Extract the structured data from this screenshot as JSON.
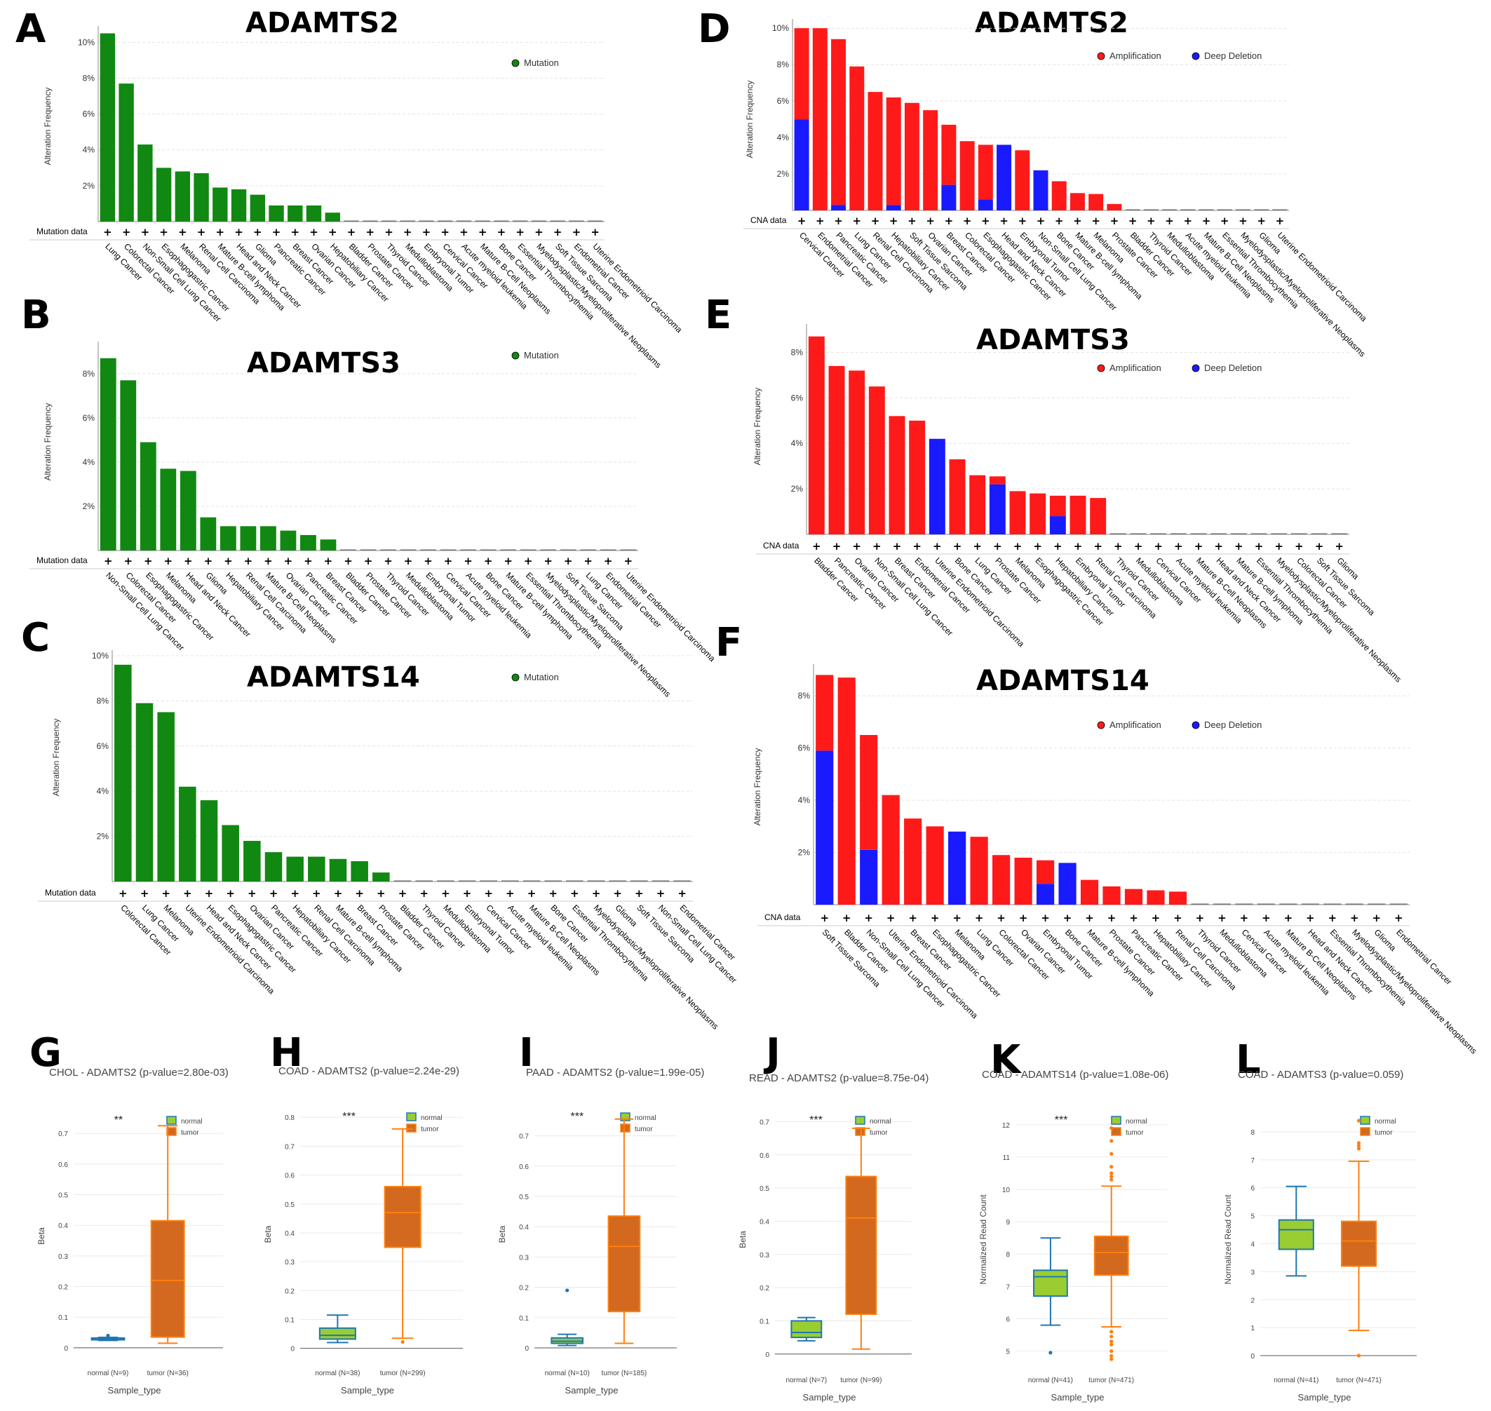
{
  "colors": {
    "mutation": "#118811",
    "amplification": "#ff1a1a",
    "deep_deletion": "#1a1aff",
    "normal_fill": "#9acd32",
    "normal_stroke": "#1f77b4",
    "tumor_fill": "#d2691e",
    "tumor_stroke": "#ff7f0e"
  },
  "chart_data": [
    {
      "panel": "A",
      "title": "ADAMTS2",
      "type": "bar",
      "ylabel": "Alteration Frequency",
      "row_label": "Mutation data",
      "yticks": [
        "2%",
        "4%",
        "6%",
        "8%",
        "10%"
      ],
      "ylim": [
        0,
        10.6
      ],
      "legend": [
        "Mutation"
      ],
      "categories": [
        "Lung Cancer",
        "Colorectal Cancer",
        "Non-Small Cell Lung Cancer",
        "Esophagogastric Cancer",
        "Melanoma",
        "Renal Cell Carcinoma",
        "Mature B-cell lymphoma",
        "Head and Neck Cancer",
        "Glioma",
        "Pancreatic Cancer",
        "Breast Cancer",
        "Ovarian Cancer",
        "Hepatobiliary Cancer",
        "Bladder Cancer",
        "Prostate Cancer",
        "Thyroid Cancer",
        "Medulloblastoma",
        "Embryonal Tumor",
        "Cervical Cancer",
        "Acute myeloid leukemia",
        "Mature B-Cell Neoplasms",
        "Bone Cancer",
        "Essential Thrombocythemia",
        "Myelodysplastic/Myeloproliferative Neoplasms",
        "Soft Tissue Sarcoma",
        "Endometrial Cancer",
        "Uterine Endometrioid Carcinoma"
      ],
      "series": [
        {
          "name": "Mutation",
          "values": [
            10.5,
            7.7,
            4.3,
            3.0,
            2.8,
            2.7,
            1.9,
            1.8,
            1.5,
            0.9,
            0.9,
            0.9,
            0.5,
            0,
            0,
            0,
            0,
            0,
            0,
            0,
            0,
            0,
            0,
            0,
            0,
            0,
            0
          ]
        }
      ]
    },
    {
      "panel": "B",
      "title": "ADAMTS3",
      "type": "bar",
      "ylabel": "Alteration Frequency",
      "row_label": "Mutation data",
      "yticks": [
        "2%",
        "4%",
        "6%",
        "8%"
      ],
      "ylim": [
        0,
        9.2
      ],
      "legend": [
        "Mutation"
      ],
      "categories": [
        "Non-Small Cell Lung Cancer",
        "Colorectal Cancer",
        "Esophagogastric Cancer",
        "Melanoma",
        "Head and Neck Cancer",
        "Glioma",
        "Hepatobiliary Cancer",
        "Renal Cell Carcinoma",
        "Mature B-Cell Neoplasms",
        "Ovarian Cancer",
        "Pancreatic Cancer",
        "Breast Cancer",
        "Bladder Cancer",
        "Prostate Cancer",
        "Thyroid Cancer",
        "Medulloblastoma",
        "Embryonal Tumor",
        "Cervical Cancer",
        "Acute myeloid leukemia",
        "Bone Cancer",
        "Mature B-cell lymphoma",
        "Essential Thrombocythemia",
        "Myelodysplastic/Myeloproliferative Neoplasms",
        "Soft Tissue Sarcoma",
        "Lung Cancer",
        "Endometrial Cancer",
        "Uterine Endometrioid Carcinoma"
      ],
      "series": [
        {
          "name": "Mutation",
          "values": [
            8.7,
            7.7,
            4.9,
            3.7,
            3.6,
            1.5,
            1.1,
            1.1,
            1.1,
            0.9,
            0.7,
            0.5,
            0,
            0,
            0,
            0,
            0,
            0,
            0,
            0,
            0,
            0,
            0,
            0,
            0,
            0,
            0
          ]
        }
      ]
    },
    {
      "panel": "C",
      "title": "ADAMTS14",
      "type": "bar",
      "ylabel": "Alteration Frequency",
      "row_label": "Mutation data",
      "yticks": [
        "2%",
        "4%",
        "6%",
        "8%",
        "10%"
      ],
      "ylim": [
        0,
        10
      ],
      "legend": [
        "Mutation"
      ],
      "categories": [
        "Colorectal Cancer",
        "Lung Cancer",
        "Melanoma",
        "Uterine Endometrioid Carcinoma",
        "Head and Neck Cancer",
        "Esophagogastric Cancer",
        "Ovarian Cancer",
        "Pancreatic Cancer",
        "Hepatobiliary Cancer",
        "Renal Cell Carcinoma",
        "Mature B-cell lymphoma",
        "Breast Cancer",
        "Prostate Cancer",
        "Bladder Cancer",
        "Thyroid Cancer",
        "Medulloblastoma",
        "Embryonal Tumor",
        "Cervical Cancer",
        "Acute myeloid leukemia",
        "Mature B-Cell Neoplasms",
        "Bone Cancer",
        "Essential Thrombocythemia",
        "Myelodysplastic/Myeloproliferative Neoplasms",
        "Glioma",
        "Soft Tissue Sarcoma",
        "Non-Small Cell Lung Cancer",
        "Endometrial Cancer"
      ],
      "series": [
        {
          "name": "Mutation",
          "values": [
            9.6,
            7.9,
            7.5,
            4.2,
            3.6,
            2.5,
            1.8,
            1.3,
            1.1,
            1.1,
            1.0,
            0.9,
            0.4,
            0,
            0,
            0,
            0,
            0,
            0,
            0,
            0,
            0,
            0,
            0,
            0,
            0,
            0
          ]
        }
      ]
    },
    {
      "panel": "D",
      "title": "ADAMTS2",
      "type": "bar",
      "ylabel": "Alteration Frequency",
      "row_label": "CNA data",
      "yticks": [
        "2%",
        "4%",
        "6%",
        "8%",
        "10%"
      ],
      "ylim": [
        0,
        10.2
      ],
      "legend": [
        "Amplification",
        "Deep Deletion"
      ],
      "categories": [
        "Cervical Cancer",
        "Endometrial Cancer",
        "Pancreatic Cancer",
        "Lung Cancer",
        "Renal Cell Carcinoma",
        "Hepatobiliary Cancer",
        "Soft Tissue Sarcoma",
        "Ovarian Cancer",
        "Breast Cancer",
        "Colorectal Cancer",
        "Esophagogastric Cancer",
        "Head and Neck Cancer",
        "Embryonal Tumor",
        "Non-Small Cell Lung Cancer",
        "Bone Cancer",
        "Mature B-cell lymphoma",
        "Melanoma",
        "Prostate Cancer",
        "Bladder Cancer",
        "Thyroid Cancer",
        "Medulloblastoma",
        "Acute myeloid leukemia",
        "Mature B-Cell Neoplasms",
        "Essential Thrombocythemia",
        "Myelodysplastic/Myeloproliferative Neoplasms",
        "Glioma",
        "Uterine Endometrioid Carcinoma"
      ],
      "series": [
        {
          "name": "Deep Deletion",
          "values": [
            5.0,
            0,
            0.3,
            0,
            0,
            0.3,
            0,
            0,
            1.4,
            0,
            0.6,
            3.6,
            0,
            2.2,
            0,
            0,
            0,
            0,
            0,
            0,
            0,
            0,
            0,
            0,
            0,
            0,
            0
          ]
        },
        {
          "name": "Amplification",
          "values": [
            5.0,
            10.0,
            9.1,
            7.9,
            6.5,
            5.9,
            5.9,
            5.5,
            3.3,
            3.8,
            3.0,
            0,
            3.3,
            0,
            1.6,
            0.95,
            0.9,
            0.35,
            0,
            0,
            0,
            0,
            0,
            0,
            0,
            0,
            0
          ]
        }
      ]
    },
    {
      "panel": "E",
      "title": "ADAMTS3",
      "type": "bar",
      "ylabel": "Alteration Frequency",
      "row_label": "CNA data",
      "yticks": [
        "2%",
        "4%",
        "6%",
        "8%"
      ],
      "ylim": [
        0,
        9.0
      ],
      "legend": [
        "Amplification",
        "Deep Deletion"
      ],
      "categories": [
        "Bladder Cancer",
        "Pancreatic Cancer",
        "Ovarian Cancer",
        "Non-Small Cell Lung Cancer",
        "Breast Cancer",
        "Endometrial Cancer",
        "Uterine Endometrioid Carcinoma",
        "Bone Cancer",
        "Lung Cancer",
        "Prostate Cancer",
        "Melanoma",
        "Esophagogastric Cancer",
        "Hepatobiliary Cancer",
        "Embryonal Tumor",
        "Renal Cell Carcinoma",
        "Thyroid Cancer",
        "Medulloblastoma",
        "Cervical Cancer",
        "Acute myeloid leukemia",
        "Mature B-Cell Neoplasms",
        "Head and Neck Cancer",
        "Mature B-cell lymphoma",
        "Essential Thrombocythemia",
        "Myelodysplastic/Myeloproliferative Neoplasms",
        "Colorectal Cancer",
        "Soft Tissue Sarcoma",
        "Glioma"
      ],
      "series": [
        {
          "name": "Deep Deletion",
          "values": [
            0,
            0,
            0,
            0,
            0,
            0,
            4.2,
            0,
            0,
            2.2,
            0,
            0,
            0.8,
            0,
            0,
            0,
            0,
            0,
            0,
            0,
            0,
            0,
            0,
            0,
            0,
            0,
            0
          ]
        },
        {
          "name": "Amplification",
          "values": [
            8.7,
            7.4,
            7.2,
            6.5,
            5.2,
            5.0,
            0,
            3.3,
            2.6,
            0.35,
            1.9,
            1.8,
            0.9,
            1.7,
            1.6,
            0,
            0,
            0,
            0,
            0,
            0,
            0,
            0,
            0,
            0,
            0,
            0
          ]
        }
      ]
    },
    {
      "panel": "F",
      "title": "ADAMTS14",
      "type": "bar",
      "ylabel": "Alteration Frequency",
      "row_label": "CNA data",
      "yticks": [
        "2%",
        "4%",
        "6%",
        "8%"
      ],
      "ylim": [
        0,
        9.0
      ],
      "legend": [
        "Amplification",
        "Deep Deletion"
      ],
      "categories": [
        "Soft Tissue Sarcoma",
        "Bladder Cancer",
        "Non-Small Cell Lung Cancer",
        "Uterine Endometrioid Carcinoma",
        "Breast Cancer",
        "Esophagogastric Cancer",
        "Melanoma",
        "Lung Cancer",
        "Colorectal Cancer",
        "Ovarian Cancer",
        "Embryonal Tumor",
        "Bone Cancer",
        "Mature B-cell lymphoma",
        "Prostate Cancer",
        "Pancreatic Cancer",
        "Hepatobiliary Cancer",
        "Renal Cell Carcinoma",
        "Thyroid Cancer",
        "Medulloblastoma",
        "Cervical Cancer",
        "Acute myeloid leukemia",
        "Mature B-Cell Neoplasms",
        "Head and Neck Cancer",
        "Essential Thrombocythemia",
        "Myelodysplastic/Myeloproliferative Neoplasms",
        "Glioma",
        "Endometrial Cancer"
      ],
      "series": [
        {
          "name": "Deep Deletion",
          "values": [
            5.9,
            0,
            2.1,
            0,
            0,
            0,
            2.8,
            0,
            0,
            0,
            0.8,
            1.6,
            0,
            0,
            0,
            0,
            0,
            0,
            0,
            0,
            0,
            0,
            0,
            0,
            0,
            0,
            0
          ]
        },
        {
          "name": "Amplification",
          "values": [
            2.9,
            8.7,
            4.4,
            4.2,
            3.3,
            3.0,
            0,
            2.6,
            1.9,
            1.8,
            0.9,
            0,
            0.95,
            0.7,
            0.6,
            0.55,
            0.5,
            0,
            0,
            0,
            0,
            0,
            0,
            0,
            0,
            0,
            0
          ]
        }
      ]
    },
    {
      "panel": "G",
      "title": "CHOL - ADAMTS2 (p-value=2.80e-03)",
      "type": "box",
      "ylabel": "Beta",
      "xlabel": "Sample_type",
      "significance": "**",
      "yticks": [
        "0",
        "0.1",
        "0.2",
        "0.3",
        "0.4",
        "0.5",
        "0.6",
        "0.7"
      ],
      "ylim": [
        -0.03,
        0.76
      ],
      "legend": [
        "normal",
        "tumor"
      ],
      "groups": [
        {
          "name": "normal",
          "label": "normal (N=9)",
          "min": 0.024,
          "q1": 0.026,
          "median": 0.028,
          "q3": 0.032,
          "max": 0.034,
          "outliers": [
            0.04
          ]
        },
        {
          "name": "tumor",
          "label": "tumor (N=36)",
          "min": 0.015,
          "q1": 0.035,
          "median": 0.22,
          "q3": 0.415,
          "max": 0.725,
          "outliers": []
        }
      ]
    },
    {
      "panel": "H",
      "title": "COAD - ADAMTS2 (p-value=2.24e-29)",
      "type": "box",
      "ylabel": "Beta",
      "xlabel": "Sample_type",
      "significance": "***",
      "yticks": [
        "0",
        "0.1",
        "0.2",
        "0.3",
        "0.4",
        "0.5",
        "0.6",
        "0.7",
        "0.8"
      ],
      "ylim": [
        -0.03,
        0.82
      ],
      "legend": [
        "normal",
        "tumor"
      ],
      "groups": [
        {
          "name": "normal",
          "label": "normal (N=38)",
          "min": 0.02,
          "q1": 0.032,
          "median": 0.045,
          "q3": 0.07,
          "max": 0.115,
          "outliers": []
        },
        {
          "name": "tumor",
          "label": "tumor (N=299)",
          "min": 0.035,
          "q1": 0.35,
          "median": 0.47,
          "q3": 0.56,
          "max": 0.76,
          "outliers": [
            0.022
          ]
        }
      ]
    },
    {
      "panel": "I",
      "title": "PAAD - ADAMTS2 (p-value=1.99e-05)",
      "type": "box",
      "ylabel": "Beta",
      "xlabel": "Sample_type",
      "significance": "***",
      "yticks": [
        "0",
        "0.1",
        "0.2",
        "0.3",
        "0.4",
        "0.5",
        "0.6",
        "0.7"
      ],
      "ylim": [
        -0.03,
        0.78
      ],
      "legend": [
        "normal",
        "tumor"
      ],
      "groups": [
        {
          "name": "normal",
          "label": "normal (N=10)",
          "min": 0.008,
          "q1": 0.015,
          "median": 0.022,
          "q3": 0.033,
          "max": 0.045,
          "outliers": [
            0.19
          ]
        },
        {
          "name": "tumor",
          "label": "tumor (N=185)",
          "min": 0.015,
          "q1": 0.12,
          "median": 0.335,
          "q3": 0.435,
          "max": 0.755,
          "outliers": []
        }
      ]
    },
    {
      "panel": "J",
      "title": "READ - ADAMTS2 (p-value=8.75e-04)",
      "type": "box",
      "ylabel": "Beta",
      "xlabel": "Sample_type",
      "significance": "***",
      "yticks": [
        "0",
        "0.1",
        "0.2",
        "0.3",
        "0.4",
        "0.5",
        "0.6",
        "0.7"
      ],
      "ylim": [
        -0.03,
        0.72
      ],
      "legend": [
        "normal",
        "tumor"
      ],
      "groups": [
        {
          "name": "normal",
          "label": "normal (N=7)",
          "min": 0.04,
          "q1": 0.05,
          "median": 0.065,
          "q3": 0.1,
          "max": 0.11,
          "outliers": []
        },
        {
          "name": "tumor",
          "label": "tumor (N=99)",
          "min": 0.015,
          "q1": 0.12,
          "median": 0.41,
          "q3": 0.535,
          "max": 0.68,
          "outliers": []
        }
      ]
    },
    {
      "panel": "K",
      "title": "COAD - ADAMTS14 (p-value=1.08e-06)",
      "type": "box",
      "ylabel": "Normalized Read Count",
      "xlabel": "Sample_type",
      "significance": "***",
      "yticks": [
        "5",
        "6",
        "7",
        "8",
        "9",
        "10",
        "11",
        "12"
      ],
      "ylim": [
        4.6,
        12.3
      ],
      "legend": [
        "normal",
        "tumor"
      ],
      "groups": [
        {
          "name": "normal",
          "label": "normal (N=41)",
          "min": 5.8,
          "q1": 6.7,
          "median": 7.3,
          "q3": 7.5,
          "max": 8.5,
          "outliers": [
            4.95
          ]
        },
        {
          "name": "tumor",
          "label": "tumor (N=471)",
          "min": 5.75,
          "q1": 7.35,
          "median": 8.05,
          "q3": 8.55,
          "max": 10.1,
          "outliers": [
            11.9,
            11.5,
            11.1,
            10.7,
            10.5,
            10.4,
            10.3,
            5.6,
            5.45,
            5.3,
            5.2,
            5.0,
            4.85,
            4.75
          ]
        }
      ]
    },
    {
      "panel": "L",
      "title": "COAD - ADAMTS3 (p-value=0.059)",
      "type": "box",
      "ylabel": "Normalized Read Count",
      "xlabel": "Sample_type",
      "significance": "",
      "yticks": [
        "0",
        "1",
        "2",
        "3",
        "4",
        "5",
        "6",
        "7",
        "8"
      ],
      "ylim": [
        -0.3,
        8.6
      ],
      "legend": [
        "normal",
        "tumor"
      ],
      "groups": [
        {
          "name": "normal",
          "label": "normal (N=41)",
          "min": 2.85,
          "q1": 3.8,
          "median": 4.5,
          "q3": 4.85,
          "max": 6.05,
          "outliers": []
        },
        {
          "name": "tumor",
          "label": "tumor (N=471)",
          "min": 0.9,
          "q1": 3.2,
          "median": 4.1,
          "q3": 4.8,
          "max": 6.95,
          "outliers": [
            8.4,
            7.6,
            7.5,
            7.4,
            0.0
          ]
        }
      ]
    }
  ]
}
